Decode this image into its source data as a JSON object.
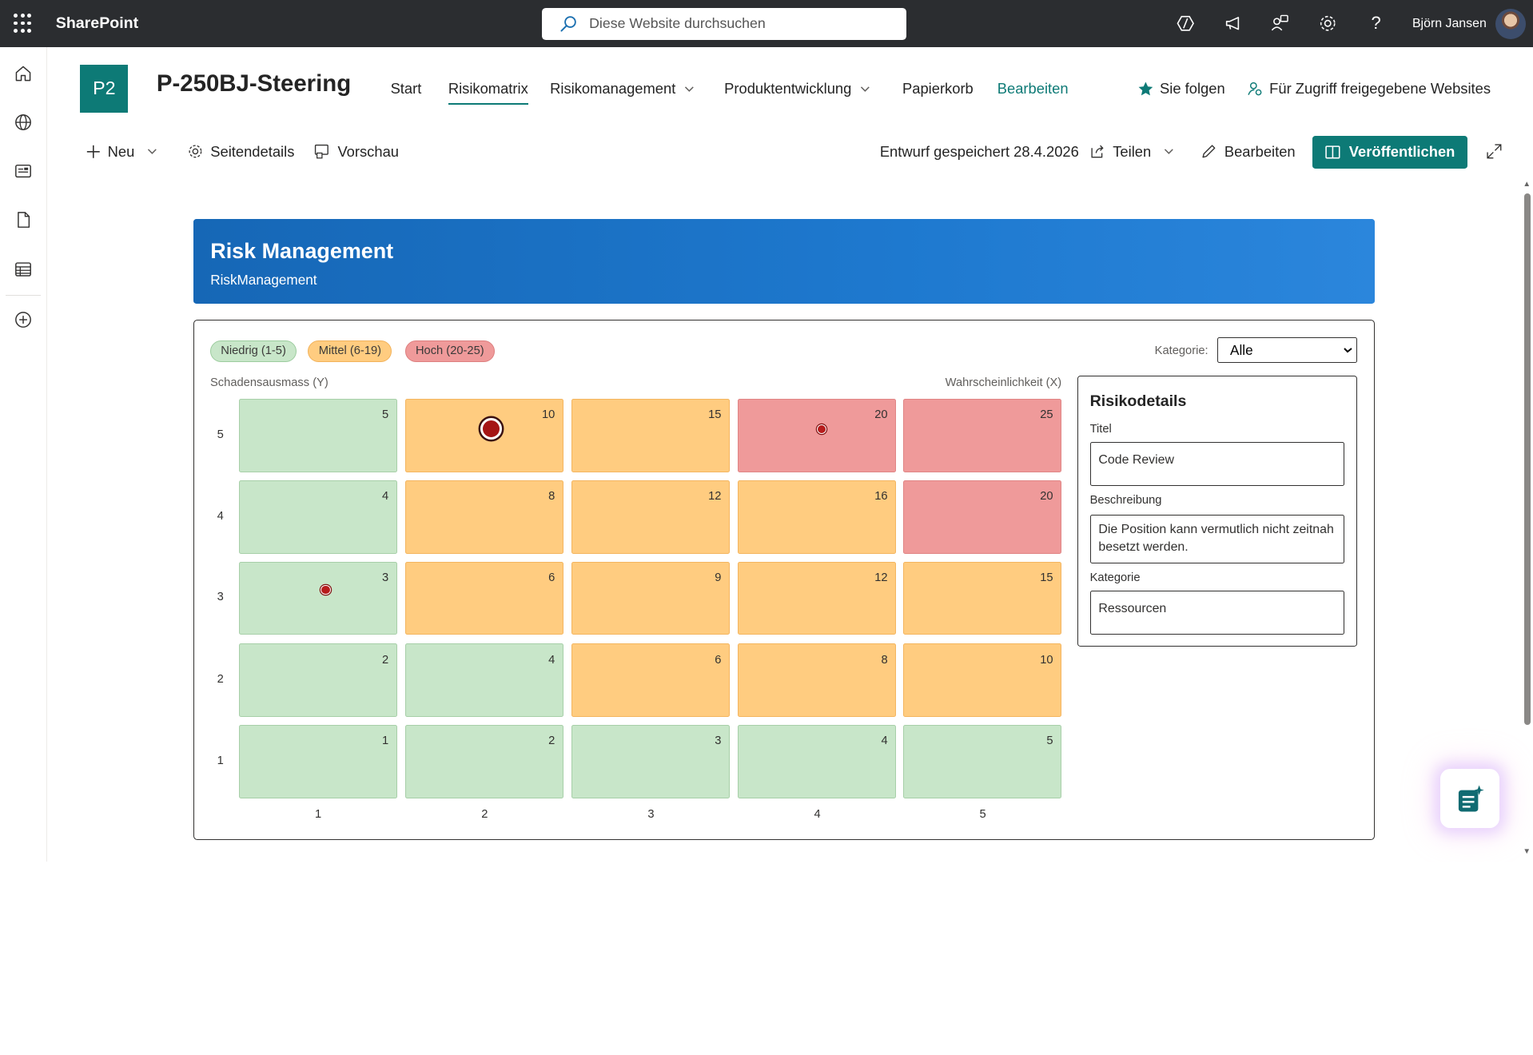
{
  "suite": {
    "app_name": "SharePoint",
    "search_placeholder": "Diese Website durchsuchen",
    "user_name": "Björn Jansen"
  },
  "site": {
    "logo_text": "P2",
    "title": "P-250BJ-Steering",
    "nav": [
      "Start",
      "Risikomatrix",
      "Risikomanagement",
      "Produktentwicklung",
      "Papierkorb",
      "Bearbeiten"
    ],
    "active_nav": "Risikomatrix",
    "follow_label": "Sie folgen",
    "shared_label": "Für Zugriff freigegebene Websites"
  },
  "command_bar": {
    "new_label": "Neu",
    "page_details_label": "Seitendetails",
    "preview_label": "Vorschau",
    "draft_status": "Entwurf gespeichert 28.4.2026",
    "share_label": "Teilen",
    "edit_label": "Bearbeiten",
    "publish_label": "Veröffentlichen"
  },
  "banner": {
    "title": "Risk Management",
    "subtitle": "RiskManagement"
  },
  "matrix": {
    "legend": [
      "Niedrig (1-5)",
      "Mittel (6-19)",
      "Hoch (20-25)"
    ],
    "legend_colors": {
      "low": "#c8e6c9",
      "medium": "#ffcc80",
      "high": "#ef9a9a"
    },
    "category_label": "Kategorie:",
    "category_selected": "Alle",
    "y_axis_label": "Schadensausmass (Y)",
    "x_axis_label": "Wahrscheinlichkeit (X)",
    "y_ticks": [
      "5",
      "4",
      "3",
      "2",
      "1"
    ],
    "x_ticks": [
      "1",
      "2",
      "3",
      "4",
      "5"
    ],
    "rows": [
      [
        "5",
        "10",
        "15",
        "20",
        "25"
      ],
      [
        "4",
        "8",
        "12",
        "16",
        "20"
      ],
      [
        "3",
        "6",
        "9",
        "12",
        "15"
      ],
      [
        "2",
        "4",
        "6",
        "8",
        "10"
      ],
      [
        "1",
        "2",
        "3",
        "4",
        "5"
      ]
    ],
    "risk_markers": [
      {
        "likelihood": 2,
        "impact": 5,
        "selected": true
      },
      {
        "likelihood": 4,
        "impact": 5,
        "selected": false
      },
      {
        "likelihood": 1,
        "impact": 3,
        "selected": false
      }
    ]
  },
  "details": {
    "heading": "Risikodetails",
    "title_label": "Titel",
    "title_value": "Code Review",
    "description_label": "Beschreibung",
    "description_value": "Die Position kann vermutlich nicht zeitnah besetzt werden.",
    "category_label": "Kategorie",
    "category_value": "Ressourcen"
  },
  "colors": {
    "brand": "#0d7a76",
    "suite_bar": "#2b2d30",
    "banner": "#1e79cf"
  }
}
